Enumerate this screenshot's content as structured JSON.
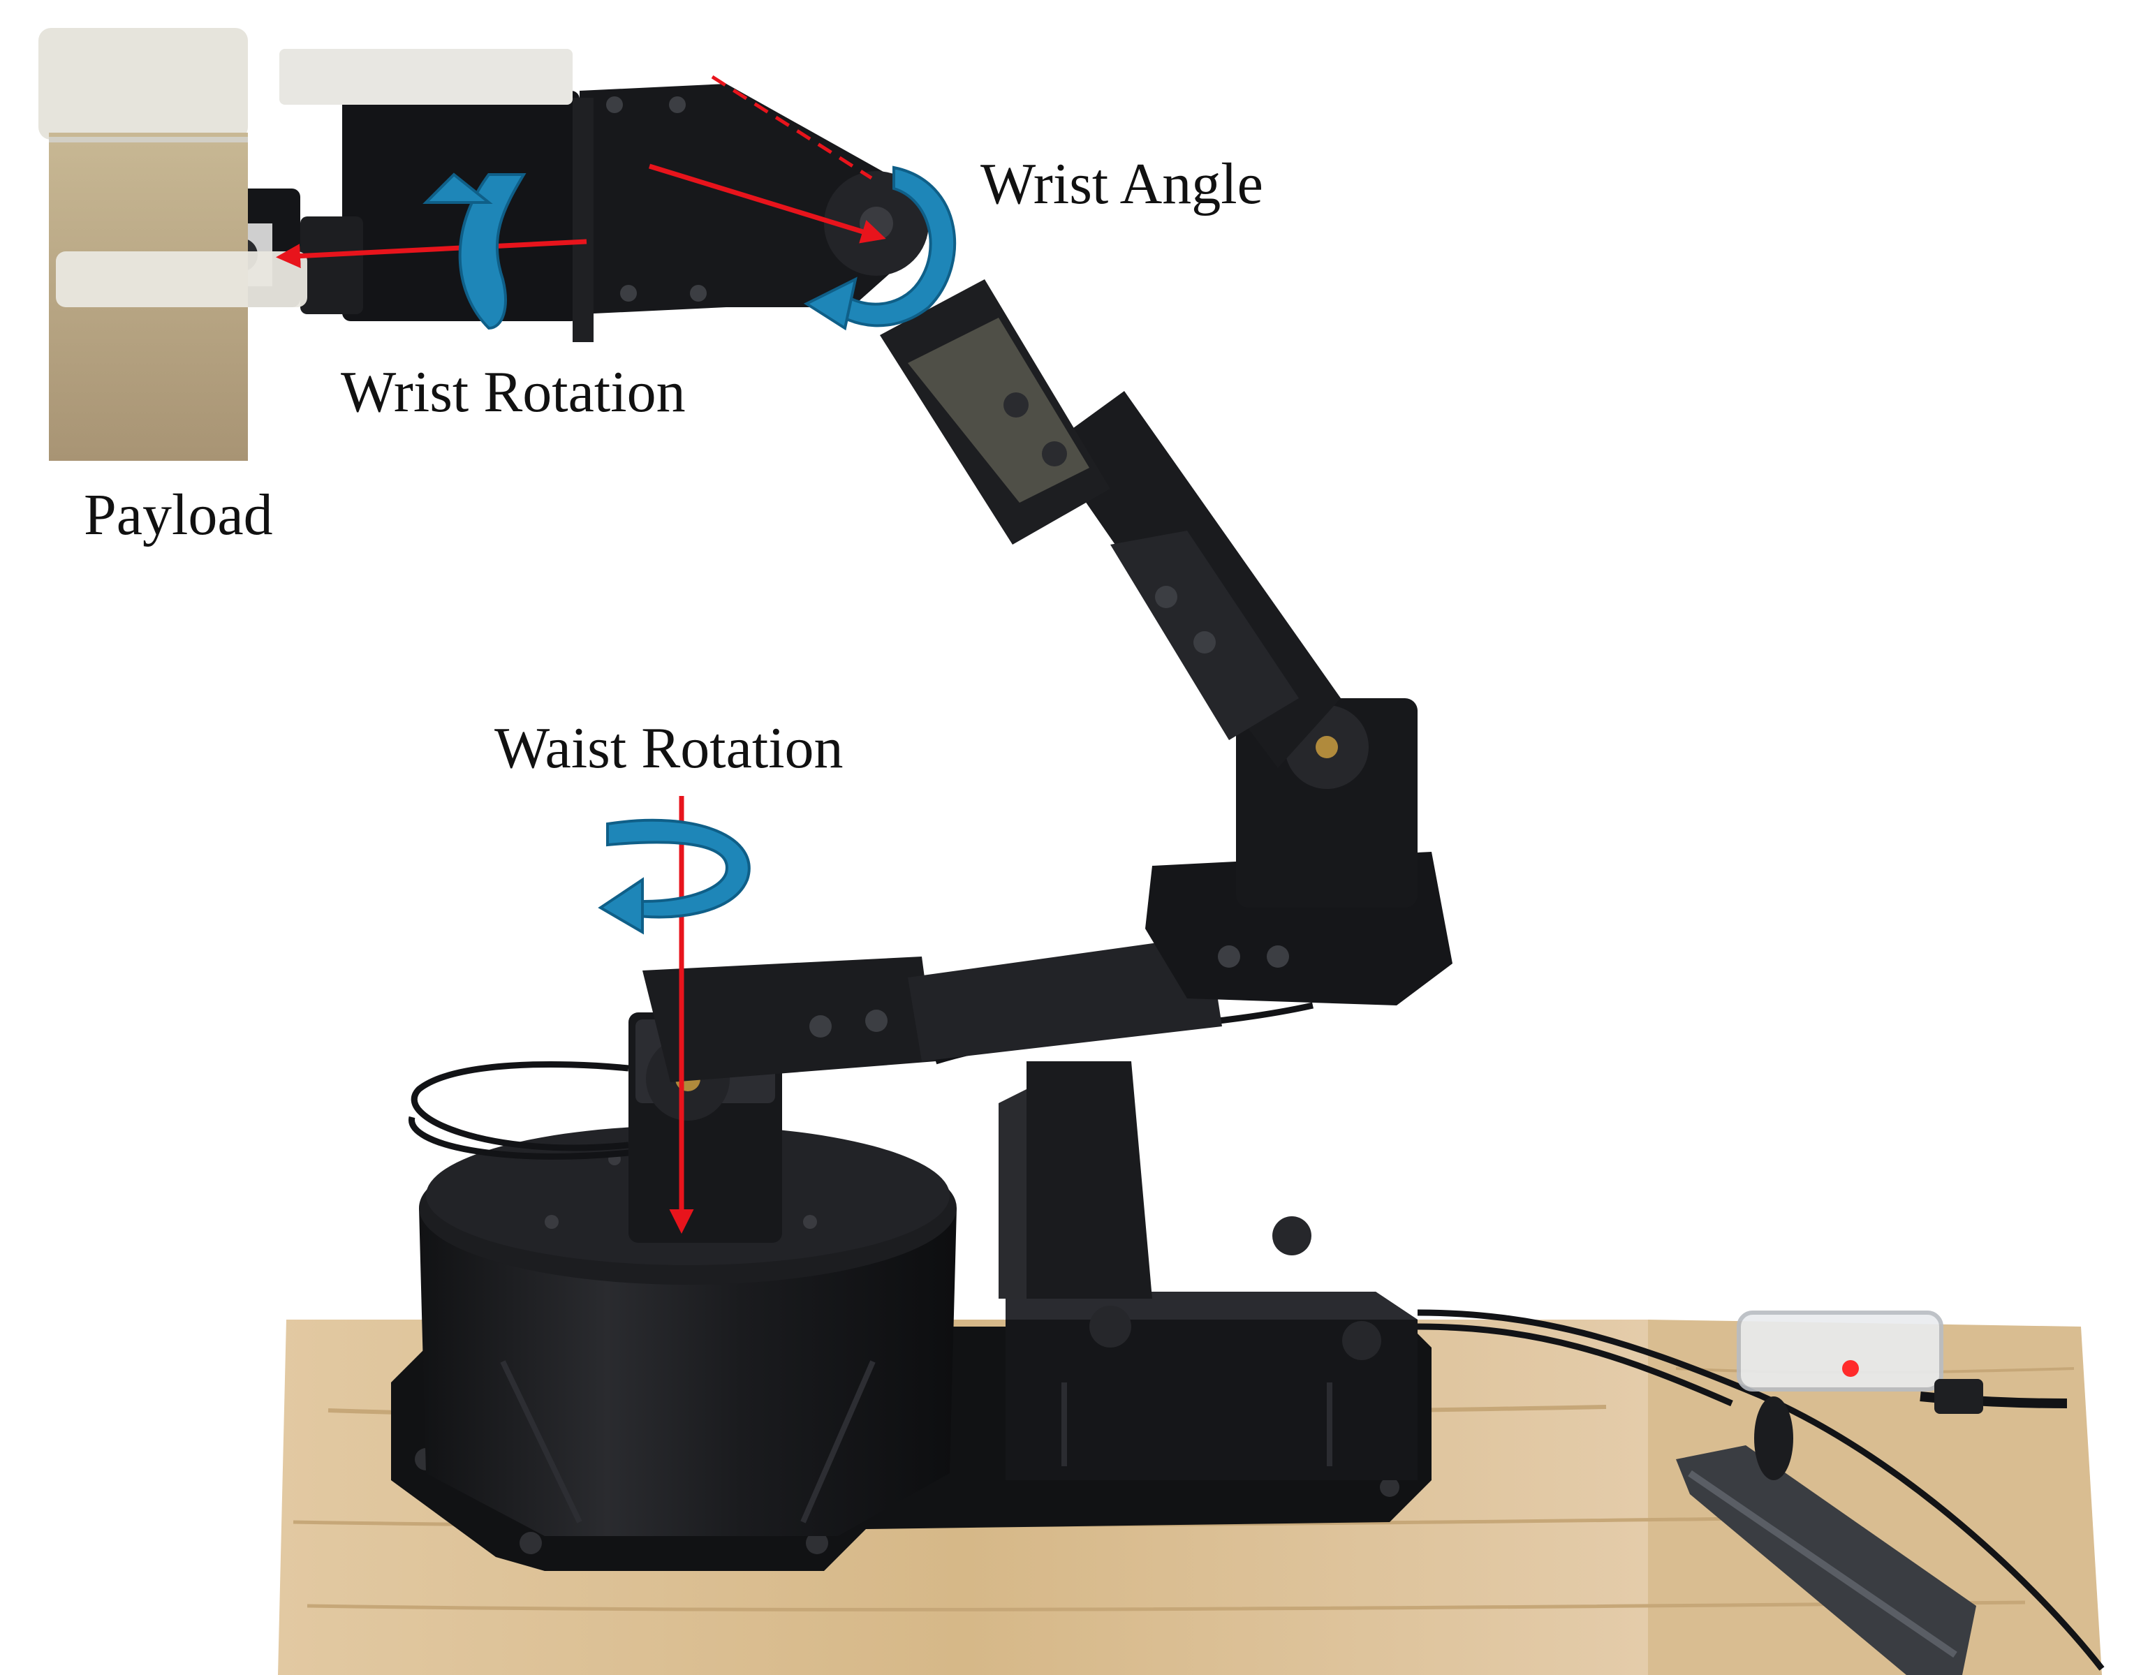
{
  "figure": {
    "subject": "desktop robotic arm holding a payload",
    "labels": {
      "wrist_angle": "Wrist Angle",
      "wrist_rotation": "Wrist Rotation",
      "payload": "Payload",
      "waist_rotation": "Waist Rotation"
    }
  },
  "colors": {
    "axis_arrow": "#e8141c",
    "rotation_arrow": "#1e86b8",
    "rotation_arrow_dark": "#0f5f88",
    "robot_body": "#1b1c1f",
    "robot_highlight": "#3a3c42",
    "grey_panel": "#4f4f47",
    "wood": "#dcc197",
    "wood_grain": "#c6a778",
    "payload_cap": "#e6e4dc",
    "payload_sand": "#b9a684",
    "label_text": "#111111"
  }
}
